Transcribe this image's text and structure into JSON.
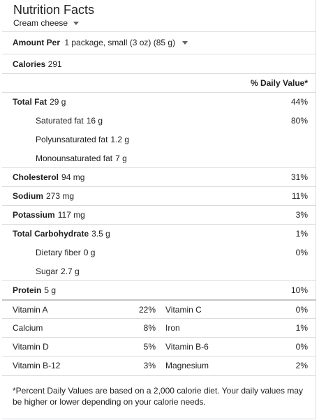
{
  "header": {
    "title": "Nutrition Facts",
    "food": "Cream cheese"
  },
  "amount": {
    "label": "Amount Per",
    "serving": "1 package, small (3 oz) (85 g)"
  },
  "calories": {
    "label": "Calories",
    "value": "291"
  },
  "daily_value_header": "% Daily Value*",
  "nutrients": [
    {
      "label": "Total Fat",
      "amount": "29 g",
      "pct": "44%",
      "bold": true,
      "indent": false
    },
    {
      "label": "Saturated fat",
      "amount": "16 g",
      "pct": "80%",
      "bold": false,
      "indent": true
    },
    {
      "label": "Polyunsaturated fat",
      "amount": "1.2 g",
      "pct": "",
      "bold": false,
      "indent": true
    },
    {
      "label": "Monounsaturated fat",
      "amount": "7 g",
      "pct": "",
      "bold": false,
      "indent": true
    },
    {
      "label": "Cholesterol",
      "amount": "94 mg",
      "pct": "31%",
      "bold": true,
      "indent": false
    },
    {
      "label": "Sodium",
      "amount": "273 mg",
      "pct": "11%",
      "bold": true,
      "indent": false
    },
    {
      "label": "Potassium",
      "amount": "117 mg",
      "pct": "3%",
      "bold": true,
      "indent": false
    },
    {
      "label": "Total Carbohydrate",
      "amount": "3.5 g",
      "pct": "1%",
      "bold": true,
      "indent": false
    },
    {
      "label": "Dietary fiber",
      "amount": "0 g",
      "pct": "0%",
      "bold": false,
      "indent": true
    },
    {
      "label": "Sugar",
      "amount": "2.7 g",
      "pct": "",
      "bold": false,
      "indent": true
    },
    {
      "label": "Protein",
      "amount": "5 g",
      "pct": "10%",
      "bold": true,
      "indent": false
    }
  ],
  "vitamins": [
    {
      "left_label": "Vitamin A",
      "left_pct": "22%",
      "right_label": "Vitamin C",
      "right_pct": "0%"
    },
    {
      "left_label": "Calcium",
      "left_pct": "8%",
      "right_label": "Iron",
      "right_pct": "1%"
    },
    {
      "left_label": "Vitamin D",
      "left_pct": "5%",
      "right_label": "Vitamin B-6",
      "right_pct": "0%"
    },
    {
      "left_label": "Vitamin B-12",
      "left_pct": "3%",
      "right_label": "Magnesium",
      "right_pct": "2%"
    }
  ],
  "footnote": "*Percent Daily Values are based on a 2,000 calorie diet. Your daily values may be higher or lower depending on your calorie needs."
}
